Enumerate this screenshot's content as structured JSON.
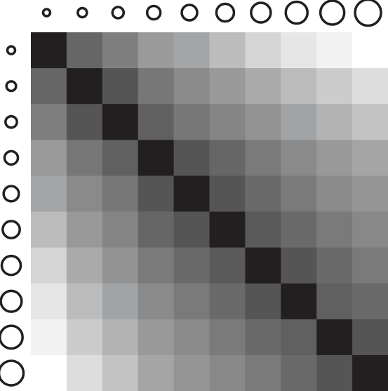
{
  "matrix": {
    "colors": [
      [
        "#231f20",
        "#666666",
        "#7f7f7f",
        "#9a9a9a",
        "#a3a5a7",
        "#bcbcbc",
        "#d5d5d5",
        "#e6e6e6",
        "#f2f2f2",
        "#ffffff"
      ],
      [
        "#666666",
        "#231f20",
        "#555555",
        "#777777",
        "#8a8a8a",
        "#999999",
        "#aaaaaa",
        "#bbbbbb",
        "#cccccc",
        "#dddddd"
      ],
      [
        "#7f7f7f",
        "#555555",
        "#231f20",
        "#606060",
        "#777777",
        "#858585",
        "#939393",
        "#a0a4a7",
        "#b3b3b3",
        "#c3c3c3"
      ],
      [
        "#9a9a9a",
        "#777777",
        "#606060",
        "#231f20",
        "#555555",
        "#666666",
        "#7a7a7a",
        "#8a8a8a",
        "#999999",
        "#a5a5a5"
      ],
      [
        "#a3a5a7",
        "#8a8a8a",
        "#777777",
        "#555555",
        "#231f20",
        "#555555",
        "#6a6a6a",
        "#7a7a7a",
        "#8a8a8a",
        "#959595"
      ],
      [
        "#bcbcbc",
        "#999999",
        "#858585",
        "#666666",
        "#555555",
        "#231f20",
        "#5a5a5a",
        "#6a6a6a",
        "#7a7a7a",
        "#888888"
      ],
      [
        "#d5d5d5",
        "#aaaaaa",
        "#939393",
        "#7a7a7a",
        "#6a6a6a",
        "#5a5a5a",
        "#231f20",
        "#555555",
        "#6a6a6a",
        "#7a7a7a"
      ],
      [
        "#e6e6e6",
        "#bbbbbb",
        "#a0a4a7",
        "#8a8a8a",
        "#7a7a7a",
        "#6a6a6a",
        "#555555",
        "#231f20",
        "#606060",
        "#6a6a6a"
      ],
      [
        "#f2f2f2",
        "#cccccc",
        "#b3b3b3",
        "#999999",
        "#8a8a8a",
        "#7a7a7a",
        "#6a6a6a",
        "#606060",
        "#231f20",
        "#555555"
      ],
      [
        "#ffffff",
        "#dddddd",
        "#c3c3c3",
        "#a5a5a5",
        "#959595",
        "#888888",
        "#7a7a7a",
        "#6a6a6a",
        "#555555",
        "#231f20"
      ]
    ]
  }
}
